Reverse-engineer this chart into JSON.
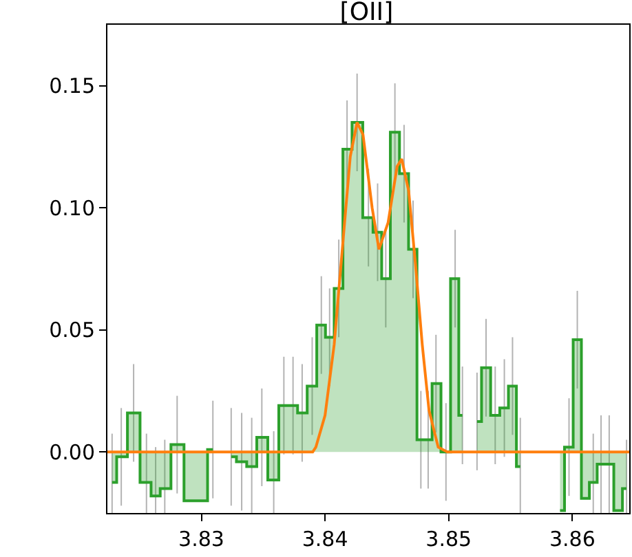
{
  "chart_data": {
    "type": "area",
    "title": "[OII]",
    "xlim": [
      3.8224,
      3.8646
    ],
    "xticks": [
      3.83,
      3.84,
      3.85,
      3.86
    ],
    "ylim": [
      -0.025,
      0.175
    ],
    "yticks": [
      {
        "value": 0,
        "label": "0.00"
      },
      0.05,
      {
        "value": 0.1,
        "label": "0.10"
      },
      0.15
    ],
    "series": [
      {
        "color": "#2ca02c",
        "x": [
          3.82278,
          3.82352,
          3.82452,
          3.82556,
          3.8263,
          3.82704,
          3.82804,
          3.82915,
          3.83007,
          3.83093,
          3.83167,
          3.83241,
          3.83326,
          3.83407,
          3.83489,
          3.83585,
          3.83667,
          3.83741,
          3.83815,
          3.83896,
          3.8397,
          3.84037,
          3.84111,
          3.84178,
          3.84259,
          3.84351,
          3.84425,
          3.84491,
          3.84565,
          3.84639,
          3.84712,
          3.84775,
          3.84834,
          3.84897,
          3.84978,
          3.85052,
          3.85111,
          3.85162,
          3.85229,
          3.85302,
          3.85376,
          3.8545,
          3.85516,
          3.85579,
          3.85653,
          3.85737,
          3.85819,
          3.859,
          3.85973,
          3.8604,
          3.86106,
          3.86169,
          3.86232,
          3.86298,
          3.86372,
          3.86438
        ],
        "values": [
          -0.0125,
          -0.002,
          0.016,
          -0.0125,
          -0.018,
          -0.015,
          0.003,
          -0.02,
          -0.02,
          0.001,
          null,
          -0.002,
          -0.004,
          -0.006,
          0.006,
          -0.0115,
          0.019,
          0.019,
          0.016,
          0.027,
          0.052,
          0.047,
          0.067,
          0.124,
          0.135,
          0.096,
          0.09,
          0.071,
          0.131,
          0.114,
          0.083,
          0.005,
          0.005,
          0.028,
          0.0,
          0.071,
          0.015,
          null,
          0.0125,
          0.0345,
          0.015,
          0.018,
          0.027,
          -0.006,
          null,
          null,
          null,
          -0.024,
          0.002,
          0.046,
          -0.019,
          -0.0125,
          -0.005,
          -0.005,
          -0.024,
          -0.015
        ],
        "errors": [
          0.02,
          0.02,
          0.02,
          0.02,
          0.02,
          0.02,
          0.02,
          null,
          null,
          0.02,
          null,
          0.02,
          0.02,
          0.02,
          0.02,
          0.02,
          0.02,
          0.02,
          0.02,
          0.02,
          0.02,
          0.02,
          0.02,
          0.02,
          0.02,
          0.02,
          0.02,
          0.02,
          0.02,
          0.02,
          0.02,
          0.02,
          0.02,
          0.02,
          0.02,
          0.02,
          0.02,
          null,
          0.02,
          0.02,
          0.02,
          0.02,
          0.02,
          0.02,
          null,
          null,
          null,
          null,
          0.02,
          0.02,
          null,
          0.02,
          0.02,
          0.02,
          null,
          0.02
        ]
      },
      {
        "type": "line",
        "color": "#ff7f0e",
        "x": [
          3.8224,
          3.839,
          3.83926,
          3.84,
          3.84074,
          3.84148,
          3.84204,
          3.84259,
          3.84307,
          3.84381,
          3.84436,
          3.8451,
          3.84583,
          3.8462,
          3.84676,
          3.84731,
          3.84786,
          3.84841,
          3.84915,
          3.84989,
          3.8646
        ],
        "values": [
          0.0,
          0.0,
          0.002,
          0.015,
          0.044,
          0.088,
          0.121,
          0.135,
          0.13,
          0.1,
          0.083,
          0.094,
          0.117,
          0.12,
          0.107,
          0.077,
          0.044,
          0.017,
          0.002,
          0.0,
          0.0
        ]
      }
    ]
  }
}
